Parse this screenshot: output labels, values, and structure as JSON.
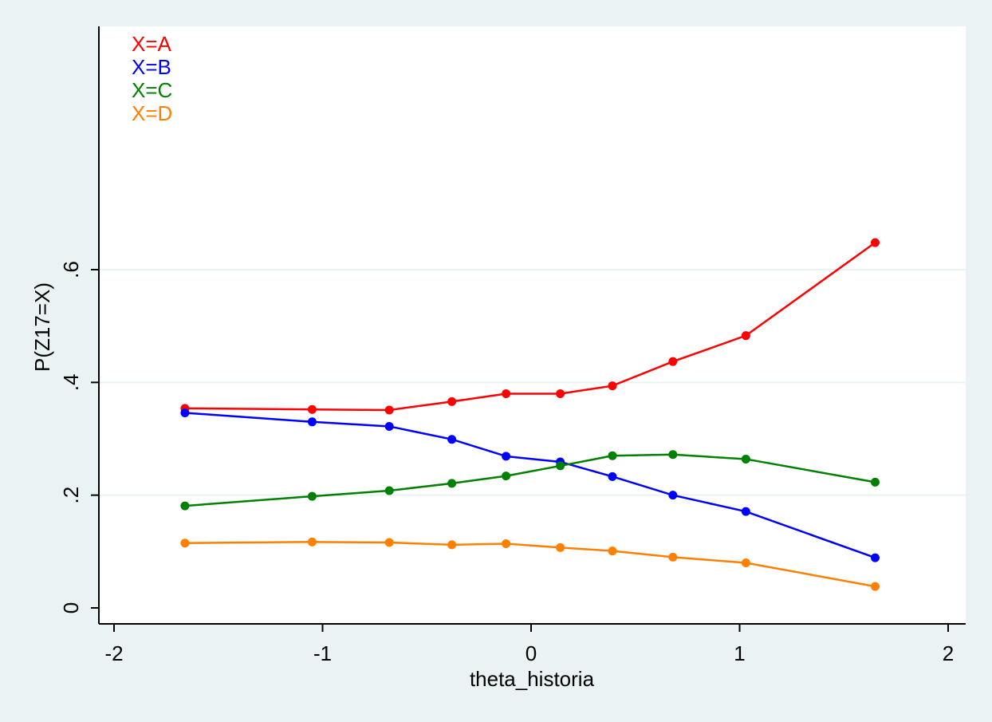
{
  "chart_data": {
    "type": "line",
    "xlabel": "theta_historia",
    "ylabel": "P(Z17=X)",
    "xlim": [
      -2,
      2
    ],
    "ylim": [
      0,
      0.6
    ],
    "xticks": [
      -2,
      -1,
      0,
      1,
      2
    ],
    "xtick_labels": [
      "-2",
      "-1",
      "0",
      "1",
      "2"
    ],
    "yticks": [
      0,
      0.2,
      0.4,
      0.6
    ],
    "ytick_labels": [
      "0",
      ".2",
      ".4",
      ".6"
    ],
    "grid": "horizontal",
    "legend_position": "top-left",
    "x": [
      -1.66,
      -1.05,
      -0.68,
      -0.38,
      -0.12,
      0.14,
      0.39,
      0.68,
      1.03,
      1.65
    ],
    "series": [
      {
        "name": "X=A",
        "color": "#ff0000",
        "values": [
          0.354,
          0.352,
          0.351,
          0.366,
          0.38,
          0.38,
          0.394,
          0.437,
          0.483,
          0.648
        ]
      },
      {
        "name": "X=B",
        "color": "#0000ff",
        "values": [
          0.346,
          0.33,
          0.322,
          0.299,
          0.269,
          0.259,
          0.233,
          0.2,
          0.171,
          0.089
        ]
      },
      {
        "name": "X=C",
        "color": "#008000",
        "values": [
          0.181,
          0.198,
          0.208,
          0.221,
          0.234,
          0.252,
          0.27,
          0.272,
          0.264,
          0.223
        ]
      },
      {
        "name": "X=D",
        "color": "#ff8000",
        "values": [
          0.115,
          0.117,
          0.116,
          0.112,
          0.114,
          0.107,
          0.101,
          0.09,
          0.08,
          0.038
        ]
      }
    ]
  }
}
